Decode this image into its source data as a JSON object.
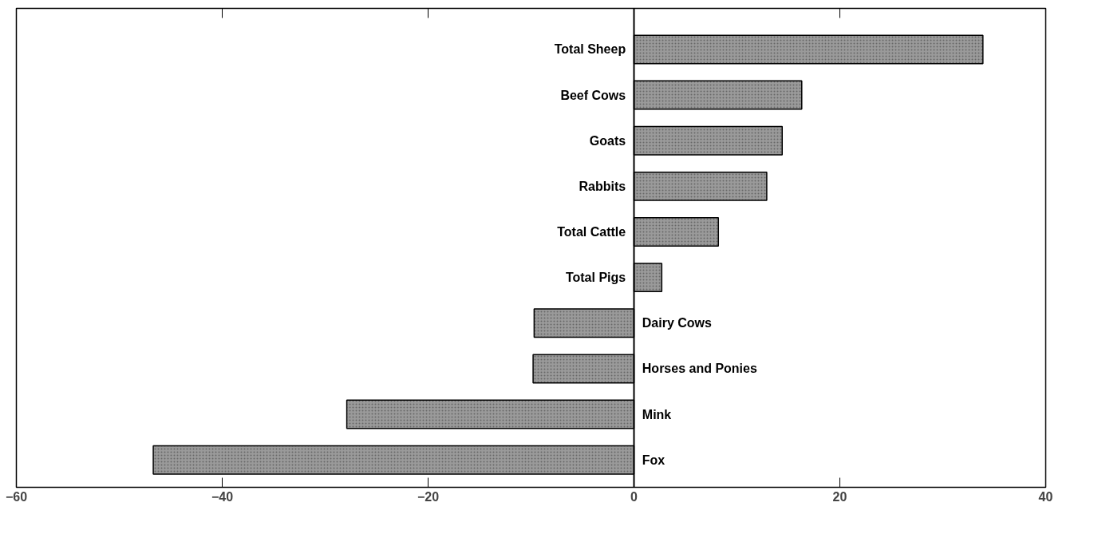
{
  "chart_data": {
    "type": "bar",
    "orientation": "horizontal",
    "categories": [
      "Total Sheep",
      "Beef Cows",
      "Goats",
      "Rabbits",
      "Total Cattle",
      "Total Pigs",
      "Dairy Cows",
      "Horses and Ponies",
      "Mink",
      "Fox"
    ],
    "values": [
      33.9,
      16.3,
      14.4,
      12.9,
      8.2,
      2.7,
      -9.7,
      -9.8,
      -27.9,
      -46.7
    ],
    "color": "#9a9a9a",
    "xlim": [
      -60,
      40
    ],
    "xticks": [
      -60,
      -40,
      -20,
      0,
      20,
      40
    ],
    "grid": false
  }
}
